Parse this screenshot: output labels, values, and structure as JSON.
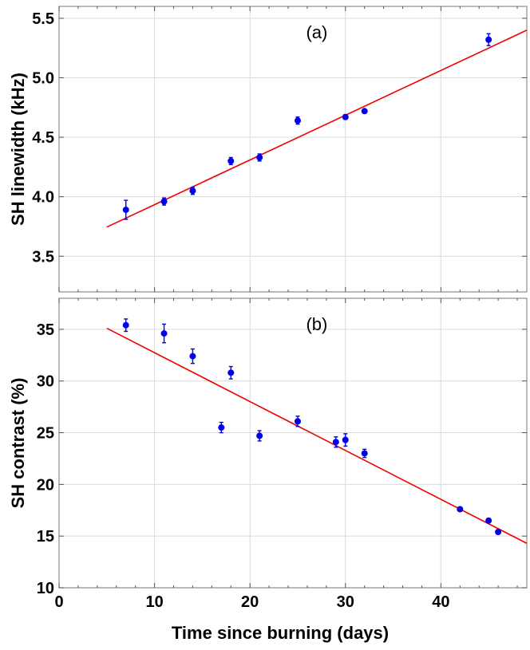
{
  "chart_data": [
    {
      "type": "scatter",
      "panel_label": "(a)",
      "ylabel": "SH linewidth (kHz)",
      "xlabel": "",
      "xlim": [
        0,
        49
      ],
      "ylim": [
        3.2,
        5.6
      ],
      "xticks": [
        0,
        10,
        20,
        30,
        40
      ],
      "yticks": [
        3.5,
        4.0,
        4.5,
        5.0,
        5.5
      ],
      "ytick_labels": [
        "3.5",
        "4.0",
        "4.5",
        "5.0",
        "5.5"
      ],
      "grid": true,
      "marker_color": "#0000ee",
      "fit_color": "#ee0000",
      "points": [
        {
          "x": 7,
          "y": 3.89,
          "err": 0.08
        },
        {
          "x": 11,
          "y": 3.96,
          "err": 0.03
        },
        {
          "x": 14,
          "y": 4.05,
          "err": 0.03
        },
        {
          "x": 18,
          "y": 4.3,
          "err": 0.03
        },
        {
          "x": 21,
          "y": 4.33,
          "err": 0.03
        },
        {
          "x": 25,
          "y": 4.64,
          "err": 0.03
        },
        {
          "x": 30,
          "y": 4.67,
          "err": 0.02
        },
        {
          "x": 32,
          "y": 4.72,
          "err": 0.01
        },
        {
          "x": 45,
          "y": 5.32,
          "err": 0.05
        }
      ],
      "fit_line": {
        "x": [
          5,
          49
        ],
        "y": [
          3.745,
          5.4
        ]
      }
    },
    {
      "type": "scatter",
      "panel_label": "(b)",
      "ylabel": "SH contrast (%)",
      "xlabel": "Time since burning (days)",
      "xlim": [
        0,
        49
      ],
      "ylim": [
        10,
        38
      ],
      "xticks": [
        0,
        10,
        20,
        30,
        40
      ],
      "xtick_labels": [
        "0",
        "10",
        "20",
        "30",
        "40"
      ],
      "yticks": [
        10,
        15,
        20,
        25,
        30,
        35
      ],
      "ytick_labels": [
        "10",
        "15",
        "20",
        "25",
        "30",
        "35"
      ],
      "grid": true,
      "marker_color": "#0000ee",
      "fit_color": "#ee0000",
      "points": [
        {
          "x": 7,
          "y": 35.4,
          "err": 0.6
        },
        {
          "x": 11,
          "y": 34.6,
          "err": 0.9
        },
        {
          "x": 14,
          "y": 32.4,
          "err": 0.7
        },
        {
          "x": 17,
          "y": 25.5,
          "err": 0.5
        },
        {
          "x": 18,
          "y": 30.8,
          "err": 0.6
        },
        {
          "x": 21,
          "y": 24.7,
          "err": 0.5
        },
        {
          "x": 25,
          "y": 26.1,
          "err": 0.5
        },
        {
          "x": 29,
          "y": 24.1,
          "err": 0.5
        },
        {
          "x": 30,
          "y": 24.3,
          "err": 0.6
        },
        {
          "x": 32,
          "y": 23.0,
          "err": 0.4
        },
        {
          "x": 42,
          "y": 17.6,
          "err": 0.2
        },
        {
          "x": 45,
          "y": 16.5,
          "err": 0.2
        },
        {
          "x": 46,
          "y": 15.4,
          "err": 0.2
        }
      ],
      "fit_line": {
        "x": [
          5,
          49
        ],
        "y": [
          35.1,
          14.3
        ]
      }
    }
  ]
}
